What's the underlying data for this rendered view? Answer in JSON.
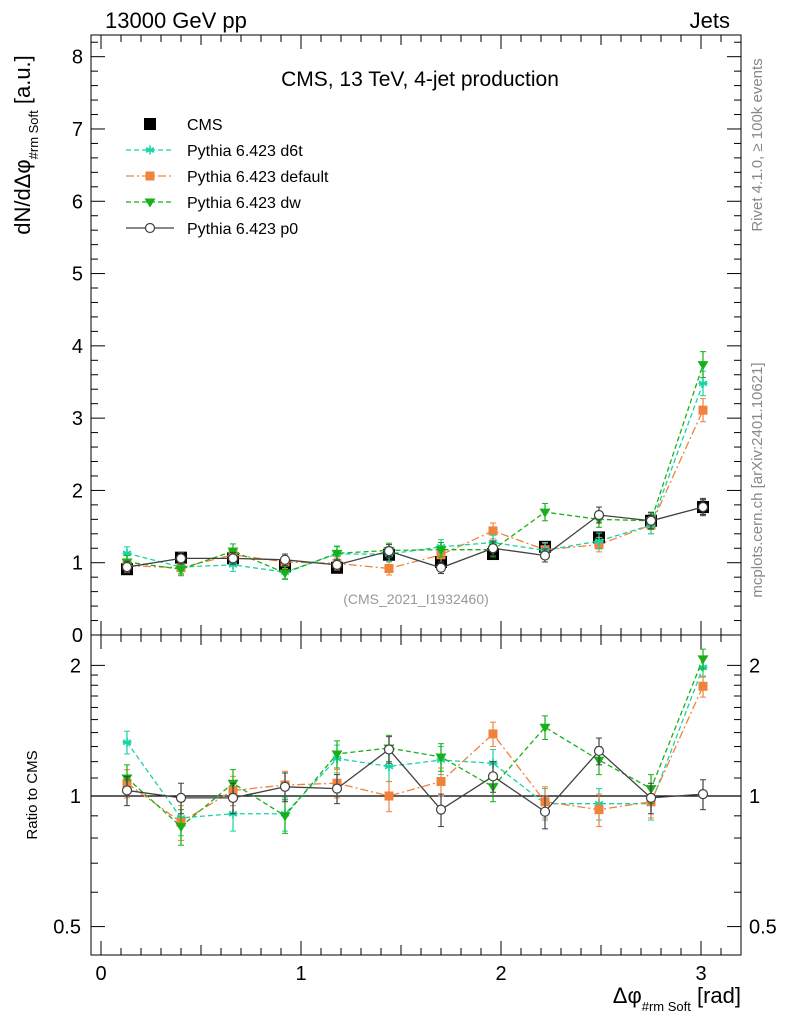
{
  "header": {
    "left": "13000 GeV pp",
    "right": "Jets"
  },
  "side_labels": {
    "rivet": "Rivet 4.1.0, ≥ 100k events",
    "mcplots": "mcplots.cern.ch [arXiv:2401.10621]"
  },
  "chart_data": [
    {
      "type": "line",
      "panel": "main",
      "title": "CMS, 13 TeV, 4-jet production",
      "ylabel": "dN/dΔφ_{#rm Soft} [a.u.]",
      "ylim": [
        0,
        8.3
      ],
      "yticks": [
        0,
        1,
        2,
        3,
        4,
        5,
        6,
        7,
        8
      ],
      "watermark": "(CMS_2021_I1932460)",
      "x": [
        0.13,
        0.4,
        0.66,
        0.92,
        1.18,
        1.44,
        1.7,
        1.96,
        2.22,
        2.49,
        2.75,
        3.01
      ],
      "series": [
        {
          "name": "CMS",
          "color": "#000000",
          "marker": "square",
          "line": "none",
          "values": [
            0.91,
            1.07,
            1.06,
            0.95,
            0.93,
            1.11,
            1.01,
            1.12,
            1.22,
            1.35,
            1.58,
            1.77
          ],
          "errors": [
            0.05,
            0.05,
            0.05,
            0.05,
            0.05,
            0.05,
            0.05,
            0.06,
            0.06,
            0.06,
            0.08,
            0.1
          ]
        },
        {
          "name": "Pythia 6.423 d6t",
          "color": "#17d4a4",
          "marker": "star",
          "line": "dashed",
          "values": [
            1.13,
            0.94,
            0.97,
            0.87,
            1.12,
            1.12,
            1.22,
            1.28,
            1.17,
            1.3,
            1.52,
            3.48
          ],
          "errors": [
            0.09,
            0.09,
            0.09,
            0.09,
            0.1,
            0.1,
            0.1,
            0.1,
            0.1,
            0.11,
            0.12,
            0.17
          ]
        },
        {
          "name": "Pythia 6.423 default",
          "color": "#f0823c",
          "marker": "square",
          "line": "dashdot",
          "values": [
            0.96,
            0.93,
            1.11,
            1.01,
            0.99,
            0.92,
            1.11,
            1.44,
            1.18,
            1.25,
            1.52,
            3.11
          ],
          "errors": [
            0.09,
            0.09,
            0.09,
            0.09,
            0.09,
            0.09,
            0.1,
            0.11,
            0.1,
            0.1,
            0.12,
            0.16
          ]
        },
        {
          "name": "Pythia 6.423 dw",
          "color": "#18b018",
          "marker": "triangle-down",
          "line": "dashed",
          "values": [
            1.01,
            0.91,
            1.16,
            0.86,
            1.13,
            1.17,
            1.18,
            1.18,
            1.7,
            1.6,
            1.58,
            3.74
          ],
          "errors": [
            0.09,
            0.09,
            0.1,
            0.09,
            0.1,
            0.1,
            0.1,
            0.1,
            0.12,
            0.11,
            0.12,
            0.18
          ]
        },
        {
          "name": "Pythia 6.423 p0",
          "color": "#404040",
          "marker": "circle-open",
          "line": "solid",
          "values": [
            0.94,
            1.06,
            1.06,
            1.04,
            0.97,
            1.16,
            0.93,
            1.2,
            1.1,
            1.66,
            1.58,
            1.77
          ],
          "errors": [
            0.08,
            0.08,
            0.08,
            0.08,
            0.08,
            0.09,
            0.08,
            0.1,
            0.09,
            0.11,
            0.11,
            0.12
          ]
        }
      ]
    },
    {
      "type": "line",
      "panel": "ratio",
      "ylabel": "Ratio to CMS",
      "xlabel": "Δφ_{#rm Soft} [rad]",
      "yscale": "log",
      "ylim": [
        0.43,
        2.35
      ],
      "yticks": [
        0.5,
        1,
        2
      ],
      "ytick_labels": [
        "0.5",
        "1",
        "2"
      ],
      "xlim": [
        -0.05,
        3.2
      ],
      "xticks": [
        0,
        1,
        2,
        3
      ],
      "x": [
        0.13,
        0.4,
        0.66,
        0.92,
        1.18,
        1.44,
        1.7,
        1.96,
        2.22,
        2.49,
        2.75,
        3.01
      ],
      "series": [
        {
          "name": "Pythia 6.423 d6t",
          "color": "#17d4a4",
          "marker": "star",
          "line": "dashed",
          "values": [
            1.33,
            0.89,
            0.91,
            0.91,
            1.22,
            1.17,
            1.21,
            1.19,
            0.96,
            0.96,
            0.96,
            1.98
          ],
          "errors": [
            0.08,
            0.08,
            0.08,
            0.08,
            0.09,
            0.09,
            0.09,
            0.09,
            0.08,
            0.08,
            0.08,
            0.1
          ]
        },
        {
          "name": "Pythia 6.423 default",
          "color": "#f0823c",
          "marker": "square",
          "line": "dashdot",
          "values": [
            1.07,
            0.87,
            1.03,
            1.06,
            1.07,
            1.0,
            1.08,
            1.39,
            0.97,
            0.93,
            0.97,
            1.79
          ],
          "errors": [
            0.08,
            0.08,
            0.08,
            0.08,
            0.08,
            0.08,
            0.08,
            0.09,
            0.08,
            0.08,
            0.08,
            0.1
          ]
        },
        {
          "name": "Pythia 6.423 dw",
          "color": "#18b018",
          "marker": "triangle-down",
          "line": "dashed",
          "values": [
            1.1,
            0.85,
            1.07,
            0.9,
            1.25,
            1.29,
            1.23,
            1.05,
            1.44,
            1.21,
            1.04,
            2.07
          ],
          "errors": [
            0.08,
            0.08,
            0.08,
            0.08,
            0.09,
            0.09,
            0.09,
            0.08,
            0.09,
            0.09,
            0.08,
            0.11
          ]
        },
        {
          "name": "Pythia 6.423 p0",
          "color": "#404040",
          "marker": "circle-open",
          "line": "solid",
          "values": [
            1.03,
            0.99,
            0.99,
            1.05,
            1.04,
            1.28,
            0.93,
            1.11,
            0.92,
            1.27,
            0.99,
            1.01
          ],
          "errors": [
            0.08,
            0.08,
            0.08,
            0.08,
            0.08,
            0.09,
            0.08,
            0.09,
            0.08,
            0.09,
            0.08,
            0.08
          ]
        }
      ],
      "reference_line": 1
    }
  ]
}
